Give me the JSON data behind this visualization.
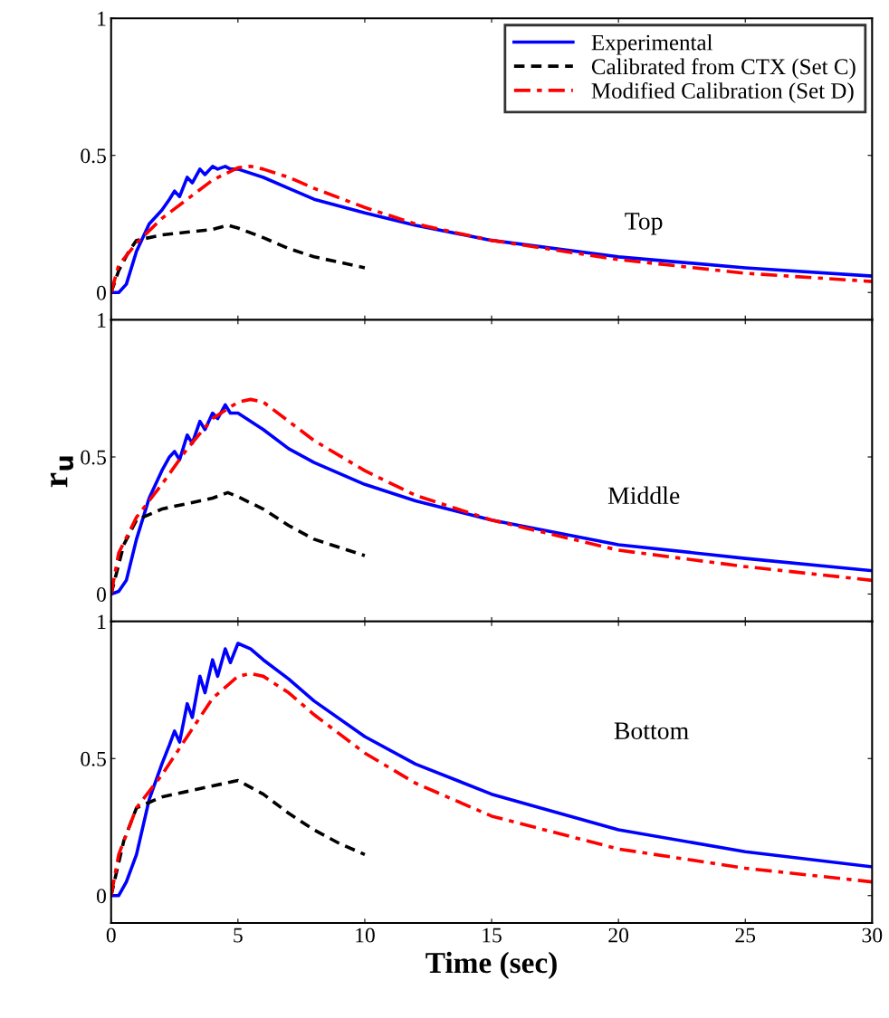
{
  "chart_data": [
    {
      "type": "line",
      "xlim": [
        0,
        30
      ],
      "xticks": [
        0,
        5,
        10,
        15,
        20,
        25,
        30
      ],
      "ylim": [
        -0.1,
        1
      ],
      "yticks": [
        0,
        0.5,
        1
      ],
      "tick_labels": "y",
      "legend": "top right",
      "grid": false,
      "annotations": [
        "Top"
      ],
      "series": [
        {
          "name": "Experimental",
          "color": "#0000ff",
          "line_style": "solid",
          "x": [
            0,
            0.3,
            0.6,
            1,
            1.5,
            2,
            2.3,
            2.5,
            2.7,
            3,
            3.2,
            3.5,
            3.7,
            4,
            4.2,
            4.5,
            4.7,
            5,
            6,
            7,
            8,
            10,
            12,
            15,
            20,
            25,
            30
          ],
          "values": [
            0,
            0,
            0.03,
            0.15,
            0.25,
            0.3,
            0.34,
            0.37,
            0.35,
            0.42,
            0.4,
            0.45,
            0.43,
            0.46,
            0.45,
            0.46,
            0.45,
            0.45,
            0.42,
            0.38,
            0.34,
            0.29,
            0.245,
            0.19,
            0.13,
            0.09,
            0.06
          ]
        },
        {
          "name": "Calibrated from CTX (Set C)",
          "color": "#000000",
          "line_style": "dashed",
          "x": [
            0,
            0.3,
            0.7,
            1,
            2,
            3,
            4,
            4.6,
            5,
            6,
            7,
            8,
            9,
            10
          ],
          "values": [
            0,
            0.08,
            0.15,
            0.19,
            0.21,
            0.22,
            0.23,
            0.245,
            0.235,
            0.2,
            0.16,
            0.13,
            0.11,
            0.09
          ]
        },
        {
          "name": "Modified Calibration (Set D)",
          "color": "#ff0000",
          "line_style": "dashdot",
          "x": [
            0,
            0.3,
            1,
            2,
            3,
            4,
            5,
            5.5,
            6,
            7,
            8,
            10,
            12,
            15,
            20,
            25,
            30
          ],
          "values": [
            0,
            0.1,
            0.18,
            0.27,
            0.34,
            0.41,
            0.455,
            0.46,
            0.45,
            0.42,
            0.38,
            0.31,
            0.25,
            0.19,
            0.12,
            0.07,
            0.04
          ]
        }
      ]
    },
    {
      "type": "line",
      "xlim": [
        0,
        30
      ],
      "xticks": [
        0,
        5,
        10,
        15,
        20,
        25,
        30
      ],
      "ylim": [
        -0.1,
        1
      ],
      "yticks": [
        0,
        0.5,
        1
      ],
      "tick_labels": "y",
      "ylabel": "r$_{u}$",
      "grid": false,
      "annotations": [
        "Middle"
      ],
      "series": [
        {
          "color": "#0000ff",
          "line_style": "solid",
          "x": [
            0,
            0.3,
            0.6,
            1,
            1.5,
            2,
            2.3,
            2.5,
            2.7,
            3,
            3.2,
            3.5,
            3.7,
            4,
            4.2,
            4.5,
            4.7,
            5,
            6,
            7,
            8,
            10,
            12,
            15,
            20,
            25,
            30
          ],
          "values": [
            0,
            0.01,
            0.05,
            0.2,
            0.35,
            0.45,
            0.5,
            0.52,
            0.49,
            0.58,
            0.55,
            0.63,
            0.6,
            0.66,
            0.64,
            0.69,
            0.66,
            0.66,
            0.6,
            0.53,
            0.48,
            0.4,
            0.34,
            0.27,
            0.18,
            0.13,
            0.085
          ]
        },
        {
          "color": "#000000",
          "line_style": "dashed",
          "x": [
            0,
            0.5,
            1,
            2,
            3,
            4,
            4.6,
            5,
            6,
            7,
            8,
            9,
            10
          ],
          "values": [
            0,
            0.18,
            0.27,
            0.31,
            0.33,
            0.35,
            0.37,
            0.355,
            0.31,
            0.25,
            0.2,
            0.17,
            0.14
          ]
        },
        {
          "color": "#ff0000",
          "line_style": "dashdot",
          "x": [
            0,
            0.3,
            1,
            2,
            3,
            4,
            5,
            5.5,
            6,
            7,
            8,
            10,
            12,
            15,
            20,
            25,
            30
          ],
          "values": [
            0,
            0.15,
            0.28,
            0.4,
            0.53,
            0.64,
            0.7,
            0.71,
            0.7,
            0.63,
            0.56,
            0.45,
            0.36,
            0.27,
            0.16,
            0.1,
            0.05
          ]
        }
      ]
    },
    {
      "type": "line",
      "xlim": [
        0,
        30
      ],
      "xticks": [
        0,
        5,
        10,
        15,
        20,
        25,
        30
      ],
      "ylim": [
        -0.1,
        1
      ],
      "yticks": [
        0,
        0.5,
        1
      ],
      "xlabel": "Time (sec)",
      "grid": false,
      "annotations": [
        "Bottom"
      ],
      "series": [
        {
          "color": "#0000ff",
          "line_style": "solid",
          "x": [
            0,
            0.3,
            0.6,
            1,
            1.5,
            2,
            2.3,
            2.5,
            2.7,
            3,
            3.2,
            3.5,
            3.7,
            4,
            4.2,
            4.5,
            4.7,
            5,
            5.5,
            6,
            7,
            8,
            10,
            12,
            15,
            20,
            25,
            30
          ],
          "values": [
            0,
            0,
            0.05,
            0.15,
            0.35,
            0.48,
            0.55,
            0.6,
            0.56,
            0.7,
            0.65,
            0.8,
            0.74,
            0.86,
            0.8,
            0.9,
            0.85,
            0.92,
            0.9,
            0.86,
            0.79,
            0.71,
            0.58,
            0.48,
            0.37,
            0.24,
            0.16,
            0.105
          ]
        },
        {
          "color": "#000000",
          "line_style": "dashed",
          "x": [
            0,
            0.5,
            1,
            1.5,
            2,
            3,
            4,
            5,
            6,
            7,
            8,
            9,
            10
          ],
          "values": [
            0,
            0.2,
            0.32,
            0.34,
            0.36,
            0.38,
            0.4,
            0.42,
            0.37,
            0.3,
            0.24,
            0.19,
            0.15
          ]
        },
        {
          "color": "#ff0000",
          "line_style": "dashdot",
          "x": [
            0,
            0.3,
            1,
            2,
            3,
            4,
            5,
            5.5,
            6,
            7,
            8,
            10,
            12,
            15,
            20,
            25,
            30
          ],
          "values": [
            0,
            0.15,
            0.32,
            0.44,
            0.58,
            0.72,
            0.8,
            0.81,
            0.8,
            0.74,
            0.66,
            0.52,
            0.41,
            0.29,
            0.17,
            0.1,
            0.05
          ]
        }
      ]
    }
  ]
}
